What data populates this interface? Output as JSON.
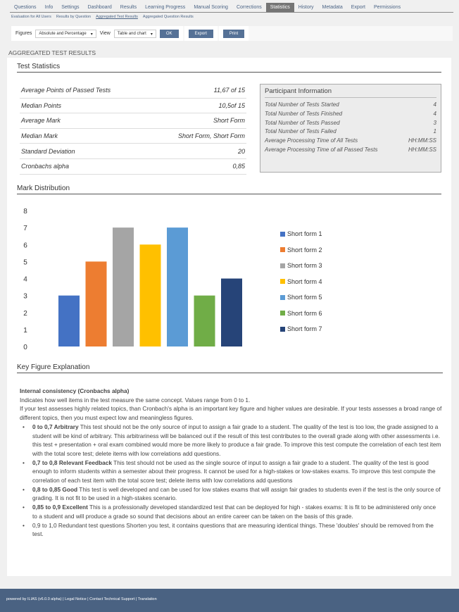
{
  "tabs": [
    {
      "label": "Questions"
    },
    {
      "label": "Info"
    },
    {
      "label": "Settings"
    },
    {
      "label": "Dashboard"
    },
    {
      "label": "Results"
    },
    {
      "label": "Learning Progress"
    },
    {
      "label": "Manual Scoring"
    },
    {
      "label": "Corrections"
    },
    {
      "label": "Statistics",
      "active": true
    },
    {
      "label": "History"
    },
    {
      "label": "Metadata"
    },
    {
      "label": "Export"
    },
    {
      "label": "Permissions"
    }
  ],
  "subtabs": [
    {
      "label": "Evaluation for All Users"
    },
    {
      "label": "Results by Question"
    },
    {
      "label": "Aggregated Test Results",
      "active": true
    },
    {
      "label": "Aggregated Question Results"
    }
  ],
  "toolbar": {
    "figures_label": "Figures",
    "figures_value": "Absolute and Percentage",
    "view_label": "View",
    "view_value": "Table and chart",
    "ok": "OK",
    "export": "Export",
    "print": "Print"
  },
  "page_heading": "AGGREGATED TEST RESULTS",
  "test_stats": {
    "title": "Test Statistics",
    "rows": [
      {
        "label": "Average Points of Passed Tests",
        "value": "11,67 of 15"
      },
      {
        "label": "Median Points",
        "value": "10,5of 15"
      },
      {
        "label": "Average Mark",
        "value": "Short Form"
      },
      {
        "label": "Median Mark",
        "value": "Short Form, Short Form"
      },
      {
        "label": "Standard Deviation",
        "value": "20"
      },
      {
        "label": "Cronbachs alpha",
        "value": "0,85"
      }
    ]
  },
  "participant_info": {
    "title": "Participant Information",
    "rows": [
      {
        "label": "Total Number of Tests Started",
        "value": "4"
      },
      {
        "label": "Total Number of Tests Finished",
        "value": "4"
      },
      {
        "label": "Total Number of Tests Passed",
        "value": "3"
      },
      {
        "label": "Total Number of Tests Failed",
        "value": "1"
      },
      {
        "label": "Average Processing Time of All Tests",
        "value": "HH:MM:SS"
      },
      {
        "label": "Average Processing Time of all Passed Tests",
        "value": "HH:MM:SS"
      }
    ]
  },
  "mark_distribution_title": "Mark Distribution",
  "chart_data": {
    "type": "bar",
    "categories": [
      "Short form 1",
      "Short form 2",
      "Short form 3",
      "Short form 4",
      "Short form 5",
      "Short form 6",
      "Short form 7"
    ],
    "values": [
      3,
      5,
      7,
      6,
      7,
      3,
      4
    ],
    "colors": [
      "#4472C4",
      "#ED7D31",
      "#A5A5A5",
      "#FFC000",
      "#5B9BD5",
      "#70AD47",
      "#264478"
    ],
    "ylim": [
      0,
      8
    ],
    "yticks": [
      "0",
      "1",
      "2",
      "3",
      "4",
      "5",
      "6",
      "7",
      "8"
    ],
    "legend": "right",
    "grid": false
  },
  "kfe": {
    "title": "Key Figure Explanation",
    "heading": "Internal consistency (Cronbachs alpha)",
    "p1": "Indicates how well items in the test measure the same concept. Values range from 0 to 1.",
    "p2": "If your test assesses highly related topics,  than Cronbach's alpha is an important key figure and higher values are desirable. If your tests assesses a broad range of different topics, then you must expect low and meaningless figures.",
    "items": [
      {
        "b": "0 to 0,7 Arbitrary",
        "t": " This test should not be the only source of input to assign a fair grade to a student. The quality of the test is too low, the grade assigned to a student will be kind of arbitrary. This arbitrariness will be balanced out if the result of this test contributes to the overall grade along with other assessments i.e. this test + presentation + oral exam combined would more be more likely to produce a fair grade. To improve this test compute the correlation of each test item with the total score test; delete items with low correlations add questions."
      },
      {
        "b": "0,7 to 0,8 Relevant Feedback",
        "t": " This test should not be used as the single source of input to assign a fair grade to a student. The quality of the test is good enough to inform students within a semester about their progress. It cannot be used for a high-stakes or low-stakes exams. To improve this test compute the correlation of each test item with the total score test; delete items with low correlations add questions"
      },
      {
        "b": "0,8 to 0,85 Good",
        "t": " This test is well developed and can be used for low stakes exams that will assign fair grades to students even if the test is the only source of grading. It is not fit to be used in a high-stakes scenario."
      },
      {
        "b": "0,85 to 0,9 Excellent",
        "t": " This is a professionally developed standardized test that can be deployed for high - stakes  exams: It is fit to be administered only once to a student and will produce a grade so sound that decisions about an entire career can be taken on the basis of this grade."
      },
      {
        "b": "",
        "t": "0,9 to 1,0 Redundant test questions Shorten you test, it contains questions that are measuring identical things. These 'doubles' should be removed from the test."
      }
    ]
  },
  "footer": {
    "powered": "powered by ILIAS (v6.0.0 alpha)",
    "links": [
      "Legal Notice",
      "Contact Technical Support",
      "Translation"
    ]
  }
}
